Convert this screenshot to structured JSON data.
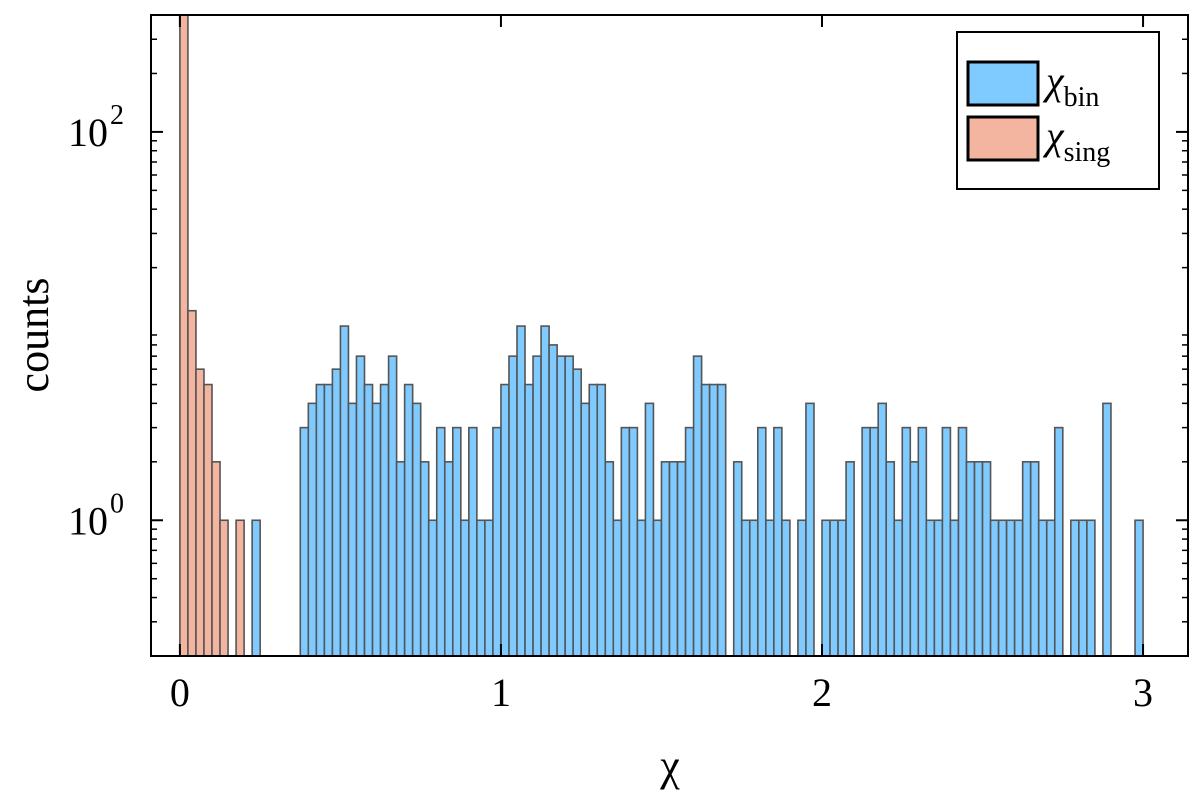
{
  "chart_data": {
    "type": "bar",
    "xlabel": "χ",
    "ylabel": "counts",
    "xlim": [
      -0.09,
      3.14
    ],
    "ylim": [
      0.2,
      400
    ],
    "yscale": "log",
    "bin_width": 0.025,
    "x_ticks": [
      {
        "value": 0,
        "label": "0"
      },
      {
        "value": 1,
        "label": "1"
      },
      {
        "value": 2,
        "label": "2"
      },
      {
        "value": 3,
        "label": "3"
      }
    ],
    "y_ticks": [
      {
        "value": 1,
        "label": "10",
        "exp": "0"
      },
      {
        "value": 100,
        "label": "10",
        "exp": "2"
      }
    ],
    "grid": false,
    "legend_position": "top-right",
    "legend": [
      {
        "symbol": "χ",
        "sub": "bin",
        "color": "#7fcaff"
      },
      {
        "symbol": "χ",
        "sub": "sing",
        "color": "#f3b5a0"
      }
    ],
    "colors": {
      "bin": "#7fcaff",
      "sing": "#f3b5a0",
      "edge": "#555555"
    },
    "series": [
      {
        "name": "χ_sing",
        "color": "#f3b5a0",
        "x": [
          0.0,
          0.025,
          0.05,
          0.075,
          0.1,
          0.125,
          0.175
        ],
        "values": [
          400,
          12,
          6,
          5,
          2,
          1,
          1
        ]
      },
      {
        "name": "χ_bin",
        "color": "#7fcaff",
        "x": [
          0.225,
          0.375,
          0.4,
          0.425,
          0.45,
          0.475,
          0.5,
          0.525,
          0.55,
          0.575,
          0.6,
          0.625,
          0.65,
          0.675,
          0.7,
          0.725,
          0.75,
          0.775,
          0.8,
          0.825,
          0.85,
          0.875,
          0.9,
          0.925,
          0.95,
          0.975,
          1.0,
          1.025,
          1.05,
          1.075,
          1.1,
          1.125,
          1.15,
          1.175,
          1.2,
          1.225,
          1.25,
          1.275,
          1.3,
          1.325,
          1.35,
          1.375,
          1.4,
          1.425,
          1.45,
          1.475,
          1.5,
          1.525,
          1.55,
          1.575,
          1.6,
          1.625,
          1.65,
          1.675,
          1.725,
          1.75,
          1.775,
          1.8,
          1.825,
          1.85,
          1.875,
          1.925,
          1.95,
          2.0,
          2.025,
          2.05,
          2.075,
          2.125,
          2.15,
          2.175,
          2.2,
          2.225,
          2.25,
          2.275,
          2.3,
          2.325,
          2.35,
          2.375,
          2.4,
          2.425,
          2.45,
          2.475,
          2.5,
          2.525,
          2.55,
          2.575,
          2.6,
          2.625,
          2.65,
          2.675,
          2.7,
          2.725,
          2.775,
          2.8,
          2.825,
          2.875,
          2.975
        ],
        "values": [
          1,
          3,
          4,
          5,
          5,
          6,
          10,
          4,
          7,
          5,
          4,
          5,
          7,
          2,
          5,
          4,
          2,
          1,
          3,
          2,
          3,
          1,
          3,
          1,
          1,
          3,
          5,
          7,
          10,
          5,
          7,
          10,
          8,
          7,
          7,
          6,
          4,
          5,
          5,
          2,
          1,
          3,
          3,
          1,
          4,
          1,
          2,
          2,
          2,
          3,
          7,
          5,
          5,
          5,
          2,
          1,
          1,
          3,
          1,
          3,
          1,
          1,
          4,
          1,
          1,
          1,
          2,
          3,
          3,
          4,
          2,
          1,
          3,
          2,
          3,
          1,
          1,
          3,
          1,
          3,
          2,
          2,
          2,
          1,
          1,
          1,
          1,
          2,
          2,
          1,
          1,
          3,
          1,
          1,
          1,
          4,
          1
        ]
      }
    ]
  }
}
